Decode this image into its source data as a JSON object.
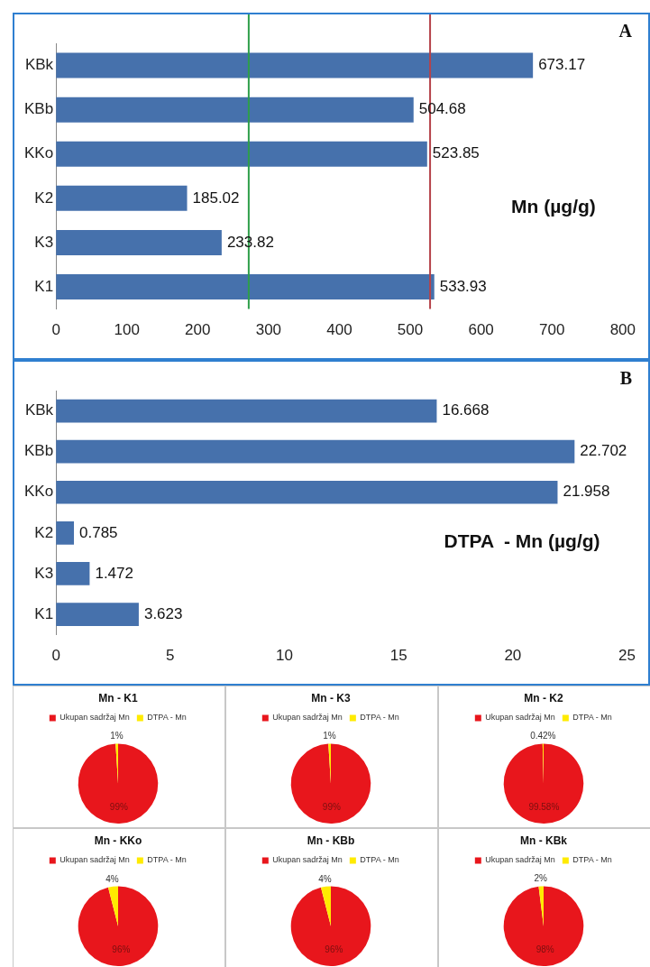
{
  "chart_data": [
    {
      "type": "bar",
      "orientation": "horizontal",
      "title": "A",
      "categories": [
        "KBk",
        "KBb",
        "KKo",
        "K2",
        "K3",
        "K1"
      ],
      "values": [
        673.17,
        504.68,
        523.85,
        185.02,
        233.82,
        533.93
      ],
      "color": "#4671ac",
      "xlim": [
        0,
        800
      ],
      "xticks": [
        0,
        100,
        200,
        300,
        400,
        500,
        600,
        700,
        800
      ],
      "data_labels": true,
      "ref_lines": [
        {
          "axis": "x",
          "value": 272,
          "color": "#2e9e4a"
        },
        {
          "axis": "x",
          "value": 528,
          "color": "#b5434a"
        }
      ],
      "annotations": [
        "Mn (µg/g)"
      ]
    },
    {
      "type": "bar",
      "orientation": "horizontal",
      "title": "B",
      "categories": [
        "KBk",
        "KBb",
        "KKo",
        "K2",
        "K3",
        "K1"
      ],
      "values": [
        16.668,
        22.702,
        21.958,
        0.785,
        1.472,
        3.623
      ],
      "color": "#4671ac",
      "xlim": [
        0,
        25
      ],
      "xticks": [
        0,
        5,
        10,
        15,
        20,
        25
      ],
      "data_labels": true,
      "annotations": [
        "DTPA  - Mn (µg/g)"
      ]
    },
    {
      "type": "pie",
      "title": "Mn - K1",
      "categories": [
        "Ukupan sadržaj Mn",
        "DTPA - Mn"
      ],
      "values": [
        99,
        1
      ],
      "colors": [
        "#e8161c",
        "#ffeb00"
      ],
      "value_labels": [
        "99%",
        "1%"
      ],
      "legend": "top"
    },
    {
      "type": "pie",
      "title": "Mn - K3",
      "categories": [
        "Ukupan sadržaj Mn",
        "DTPA - Mn"
      ],
      "values": [
        99,
        1
      ],
      "colors": [
        "#e8161c",
        "#ffeb00"
      ],
      "value_labels": [
        "99%",
        "1%"
      ],
      "legend": "top"
    },
    {
      "type": "pie",
      "title": "Mn - K2",
      "categories": [
        "Ukupan sadržaj Mn",
        "DTPA - Mn"
      ],
      "values": [
        99.58,
        0.42
      ],
      "colors": [
        "#e8161c",
        "#ffeb00"
      ],
      "value_labels": [
        "99.58%",
        "0.42%"
      ],
      "legend": "top"
    },
    {
      "type": "pie",
      "title": "Mn - KKo",
      "categories": [
        "Ukupan sadržaj Mn",
        "DTPA - Mn"
      ],
      "values": [
        96,
        4
      ],
      "colors": [
        "#e8161c",
        "#ffeb00"
      ],
      "value_labels": [
        "96%",
        "4%"
      ],
      "legend": "top"
    },
    {
      "type": "pie",
      "title": "Mn - KBb",
      "categories": [
        "Ukupan sadržaj Mn",
        "DTPA - Mn"
      ],
      "values": [
        96,
        4
      ],
      "colors": [
        "#e8161c",
        "#ffeb00"
      ],
      "value_labels": [
        "96%",
        "4%"
      ],
      "legend": "top"
    },
    {
      "type": "pie",
      "title": "Mn - KBk",
      "categories": [
        "Ukupan sadržaj Mn",
        "DTPA - Mn"
      ],
      "values": [
        98,
        2
      ],
      "colors": [
        "#e8161c",
        "#ffeb00"
      ],
      "value_labels": [
        "98%",
        "2%"
      ],
      "legend": "top"
    }
  ]
}
